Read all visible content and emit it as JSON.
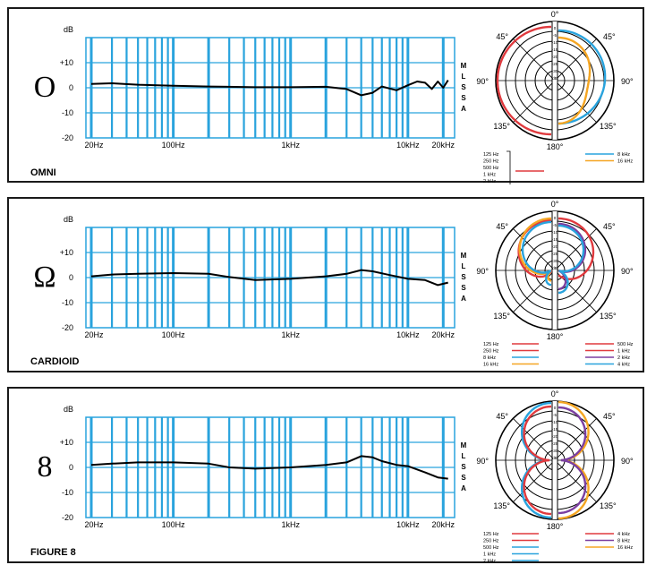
{
  "panels": [
    {
      "title": "OMNI",
      "symbol": "O",
      "chart_data": {
        "type": "line",
        "ylabel": "dB",
        "y_ticks": [
          "+10",
          "0",
          "-10",
          "-20"
        ],
        "ylim": [
          -20,
          20
        ],
        "x_scale": "log",
        "xlim": [
          18,
          25000
        ],
        "x_ticks": [
          {
            "value": 20,
            "label": "20Hz"
          },
          {
            "value": 100,
            "label": "100Hz"
          },
          {
            "value": 1000,
            "label": "1kHz"
          },
          {
            "value": 10000,
            "label": "10kHz"
          },
          {
            "value": 20000,
            "label": "20kHz"
          }
        ],
        "series": [
          {
            "color": "#000000",
            "x": [
              20,
              30,
              50,
              100,
              200,
              500,
              1000,
              2000,
              3000,
              4000,
              5000,
              6000,
              8000,
              10000,
              12000,
              14000,
              16000,
              18000,
              20000,
              22000
            ],
            "y": [
              1.5,
              1.8,
              1.2,
              0.8,
              0.5,
              0.2,
              0.2,
              0.4,
              -0.5,
              -3,
              -2,
              0.5,
              -1,
              1,
              2.5,
              2,
              -0.5,
              2.5,
              0,
              3
            ]
          }
        ],
        "side_label": [
          "M",
          "L",
          "S",
          "S",
          "A"
        ]
      },
      "polar": {
        "angle_labels": [
          "0°",
          "45°",
          "90°",
          "135°",
          "180°",
          "45°",
          "90°",
          "135°"
        ],
        "ring_labels": [
          "0",
          "-5",
          "-10",
          "-15",
          "-20",
          "-25",
          "-30",
          "dB"
        ],
        "legend_left": {
          "entries": [
            "125 Hz",
            "250 Hz",
            "500 Hz",
            "1 kHz",
            "2 kHz",
            "4 kHz"
          ],
          "color": "#e03a3e"
        },
        "legend_right": [
          {
            "label": "8 kHz",
            "color": "#29a3dd"
          },
          {
            "label": "16 kHz",
            "color": "#f5a623"
          }
        ]
      }
    },
    {
      "title": "CARDIOID",
      "symbol": "Ω",
      "chart_data": {
        "type": "line",
        "ylabel": "dB",
        "y_ticks": [
          "+10",
          "0",
          "-10",
          "-20"
        ],
        "ylim": [
          -20,
          20
        ],
        "x_scale": "log",
        "xlim": [
          18,
          25000
        ],
        "x_ticks": [
          {
            "value": 20,
            "label": "20Hz"
          },
          {
            "value": 100,
            "label": "100Hz"
          },
          {
            "value": 1000,
            "label": "1kHz"
          },
          {
            "value": 10000,
            "label": "10kHz"
          },
          {
            "value": 20000,
            "label": "20kHz"
          }
        ],
        "series": [
          {
            "color": "#000000",
            "x": [
              20,
              30,
              50,
              100,
              200,
              300,
              500,
              1000,
              2000,
              3000,
              4000,
              5000,
              7000,
              10000,
              14000,
              18000,
              22000
            ],
            "y": [
              0.5,
              1.2,
              1.5,
              1.8,
              1.5,
              0.2,
              -1,
              -0.5,
              0.5,
              1.5,
              3,
              2.5,
              1,
              -0.5,
              -1,
              -3,
              -2
            ]
          }
        ],
        "side_label": [
          "M",
          "L",
          "S",
          "S",
          "A"
        ]
      },
      "polar": {
        "angle_labels": [
          "0°",
          "45°",
          "90°",
          "135°",
          "180°",
          "45°",
          "90°",
          "135°"
        ],
        "ring_labels": [
          "0",
          "-5",
          "-10",
          "-15",
          "-20",
          "-25",
          "-30",
          "dB"
        ],
        "legend_left": [
          {
            "label": "125 Hz",
            "color": "#e03a3e"
          },
          {
            "label": "250 Hz",
            "color": "#e03a3e"
          },
          {
            "label": "8 kHz",
            "color": "#29a3dd"
          },
          {
            "label": "16 kHz",
            "color": "#f5a623"
          }
        ],
        "legend_right": [
          {
            "label": "500 Hz",
            "color": "#e03a3e"
          },
          {
            "label": "1 kHz",
            "color": "#e03a3e"
          },
          {
            "label": "2 kHz",
            "color": "#7b3fa0"
          },
          {
            "label": "4 kHz",
            "color": "#29a3dd"
          }
        ]
      }
    },
    {
      "title": "FIGURE 8",
      "symbol": "8",
      "chart_data": {
        "type": "line",
        "ylabel": "dB",
        "y_ticks": [
          "+10",
          "0",
          "-10",
          "-20"
        ],
        "ylim": [
          -20,
          20
        ],
        "x_scale": "log",
        "xlim": [
          18,
          25000
        ],
        "x_ticks": [
          {
            "value": 20,
            "label": "20Hz"
          },
          {
            "value": 100,
            "label": "100Hz"
          },
          {
            "value": 1000,
            "label": "1kHz"
          },
          {
            "value": 10000,
            "label": "10kHz"
          },
          {
            "value": 20000,
            "label": "20kHz"
          }
        ],
        "series": [
          {
            "color": "#000000",
            "x": [
              20,
              30,
              50,
              100,
              200,
              300,
              500,
              1000,
              2000,
              3000,
              4000,
              5000,
              6000,
              8000,
              10000,
              14000,
              18000,
              22000
            ],
            "y": [
              1,
              1.5,
              2,
              2,
              1.5,
              0,
              -0.5,
              0,
              1,
              2,
              4.5,
              4,
              2.5,
              1,
              0.5,
              -2,
              -4,
              -4.5
            ]
          }
        ],
        "side_label": [
          "M",
          "L",
          "S",
          "S",
          "A"
        ]
      },
      "polar": {
        "angle_labels": [
          "0°",
          "45°",
          "90°",
          "135°",
          "180°",
          "45°",
          "90°",
          "135°"
        ],
        "ring_labels": [
          "0",
          "-5",
          "-10",
          "-15",
          "-20",
          "-25",
          "-30",
          "dB"
        ],
        "legend_left": [
          {
            "label": "125 Hz",
            "color": "#e03a3e"
          },
          {
            "label": "250 Hz",
            "color": "#e03a3e"
          },
          {
            "label": "500 Hz",
            "color": "#29a3dd"
          },
          {
            "label": "1 kHz",
            "color": "#29a3dd"
          },
          {
            "label": "2 kHz",
            "color": "#29a3dd"
          }
        ],
        "legend_right": [
          {
            "label": "4 kHz",
            "color": "#e03a3e"
          },
          {
            "label": "8 kHz",
            "color": "#7b3fa0"
          },
          {
            "label": "16 kHz",
            "color": "#f5a623"
          }
        ]
      }
    }
  ],
  "colors": {
    "grid": "#29a3dd",
    "red": "#e03a3e",
    "blue": "#29a3dd",
    "orange": "#f5a623",
    "purple": "#7b3fa0"
  }
}
